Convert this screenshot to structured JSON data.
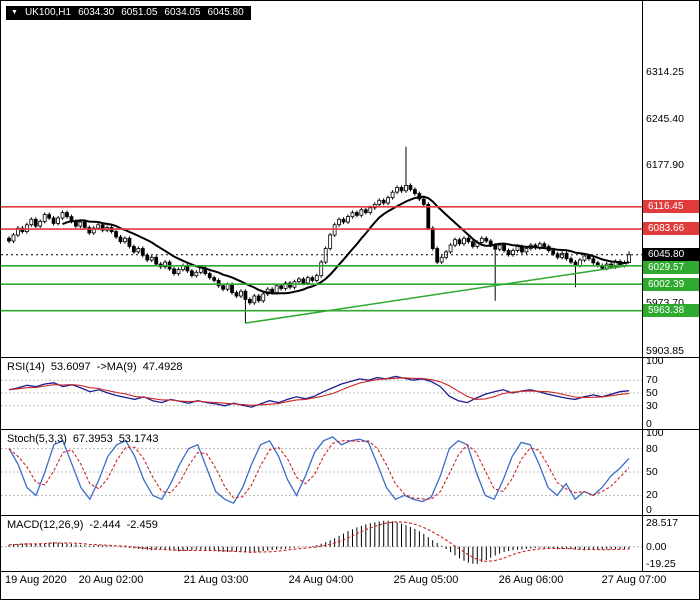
{
  "title_bar": {
    "symbol_period": "UK100,H1",
    "open": "6034.30",
    "high": "6051.05",
    "low": "6034.05",
    "close": "6045.80"
  },
  "colors": {
    "background": "#ffffff",
    "candle_outline": "#000000",
    "red_level": "#e03c3c",
    "green_level": "#2faa2f",
    "rsi_main": "#1c1c8f",
    "signal_red": "#cc2626",
    "stoch_main": "#3a6cc8",
    "badge_black": "#000000"
  },
  "chart_data": {
    "type": "candlestick",
    "symbol": "UK100",
    "period": "H1",
    "x_axis_labels": [
      "19 Aug 2020",
      "20 Aug 02:00",
      "21 Aug 03:00",
      "24 Aug 04:00",
      "25 Aug 05:00",
      "26 Aug 06:00",
      "27 Aug 07:00"
    ],
    "y_axis_labels": [
      "6314.25",
      "6245.40",
      "6177.90",
      "5973.70",
      "5903.85"
    ],
    "price_range": {
      "min": 5901,
      "max": 6408
    },
    "levels": [
      {
        "price": 6116.45,
        "label": "6116.45",
        "color": "#e03c3c",
        "type": "resistance"
      },
      {
        "price": 6083.66,
        "label": "6083.66",
        "color": "#e03c3c",
        "type": "resistance"
      },
      {
        "price": 6029.57,
        "label": "6029.57",
        "color": "#2faa2f",
        "type": "support"
      },
      {
        "price": 6002.39,
        "label": "6002.39",
        "color": "#2faa2f",
        "type": "support"
      },
      {
        "price": 5963.38,
        "label": "5963.38",
        "color": "#2faa2f",
        "type": "support"
      }
    ],
    "current_price": {
      "price": 6045.8,
      "label": "6045.80"
    },
    "trendline": {
      "from_index": 53,
      "from_price": 5945,
      "to_index": 139,
      "to_price": 6030,
      "color": "#2faa2f"
    },
    "ma_period": 13,
    "candles": {
      "first_open": 6070,
      "wick": 3,
      "closes": [
        6066,
        6075,
        6085,
        6080,
        6090,
        6098,
        6088,
        6095,
        6105,
        6100,
        6092,
        6100,
        6108,
        6102,
        6095,
        6088,
        6094,
        6086,
        6078,
        6085,
        6090,
        6082,
        6086,
        6080,
        6072,
        6065,
        6070,
        6058,
        6050,
        6055,
        6045,
        6038,
        6042,
        6032,
        6028,
        6035,
        6025,
        6018,
        6024,
        6030,
        6022,
        6015,
        6020,
        6026,
        6018,
        6012,
        6008,
        6000,
        5995,
        6002,
        5990,
        5985,
        5992,
        5980,
        5975,
        5985,
        5978,
        5988,
        5995,
        5990,
        6000,
        5996,
        6004,
        5998,
        6006,
        6010,
        6004,
        6012,
        6008,
        6015,
        6035,
        6055,
        6075,
        6090,
        6098,
        6094,
        6102,
        6108,
        6104,
        6112,
        6108,
        6115,
        6120,
        6126,
        6122,
        6130,
        6138,
        6145,
        6140,
        6148,
        6142,
        6136,
        6128,
        6120,
        6085,
        6055,
        6035,
        6042,
        6050,
        6060,
        6068,
        6062,
        6070,
        6065,
        6058,
        6064,
        6070,
        6066,
        6060,
        6054,
        6060,
        6052,
        6046,
        6052,
        6058,
        6050,
        6055,
        6060,
        6056,
        6062,
        6058,
        6052,
        6047,
        6042,
        6048,
        6040,
        6035,
        6030,
        6038,
        6044,
        6040,
        6034,
        6030,
        6026,
        6032,
        6028,
        6036,
        6030,
        6034.3,
        6045.8
      ],
      "overrides": {
        "53": {
          "low": 5945
        },
        "89": {
          "high": 6205
        },
        "109": {
          "low": 5978
        },
        "127": {
          "low": 5998
        },
        "139": {
          "high": 6051.05,
          "low": 6034.05
        }
      }
    },
    "indicators": {
      "rsi": {
        "name": "RSI(14)",
        "value": "53.6097",
        "ma_name": "->MA(9)",
        "ma_value": "47.4928",
        "range": [
          0,
          100
        ],
        "level_lines": [
          30,
          50,
          70
        ],
        "axis_labels": [
          "100",
          "70",
          "50",
          "30",
          "0"
        ],
        "values": [
          55,
          58,
          62,
          60,
          64,
          66,
          60,
          63,
          58,
          52,
          55,
          50,
          46,
          43,
          40,
          44,
          38,
          35,
          40,
          37,
          34,
          38,
          35,
          33,
          30,
          34,
          31,
          28,
          33,
          38,
          35,
          40,
          44,
          41,
          45,
          52,
          58,
          64,
          68,
          72,
          70,
          74,
          72,
          76,
          73,
          70,
          72,
          68,
          60,
          45,
          38,
          35,
          42,
          48,
          52,
          55,
          50,
          53,
          55,
          52,
          48,
          45,
          42,
          40,
          44,
          47,
          44,
          48,
          52,
          53.6
        ]
      },
      "stoch": {
        "name": "Stoch(5,3,3)",
        "value": "67.3953",
        "signal_value": "53.1743",
        "range": [
          0,
          100
        ],
        "level_lines": [
          20,
          50,
          80
        ],
        "axis_labels": [
          "100",
          "80",
          "50",
          "20",
          "0"
        ],
        "values": [
          80,
          60,
          30,
          20,
          50,
          85,
          90,
          60,
          30,
          15,
          40,
          70,
          85,
          90,
          70,
          40,
          20,
          15,
          35,
          60,
          80,
          85,
          55,
          25,
          15,
          10,
          30,
          60,
          85,
          90,
          70,
          40,
          20,
          45,
          75,
          90,
          95,
          85,
          90,
          92,
          88,
          60,
          30,
          15,
          20,
          15,
          12,
          18,
          45,
          80,
          90,
          85,
          50,
          20,
          15,
          40,
          70,
          88,
          85,
          60,
          30,
          20,
          35,
          15,
          25,
          20,
          30,
          45,
          55,
          67.4
        ]
      },
      "macd": {
        "name": "MACD(12,26,9)",
        "value": "-2.444",
        "signal_value": "-2.459",
        "range": [
          -22,
          30
        ],
        "axis_labels": [
          "28.517",
          "0.00",
          "-19.25"
        ],
        "values": [
          2,
          3,
          4,
          3,
          4,
          5,
          4,
          3,
          2,
          1,
          2,
          1,
          0,
          -1,
          -2,
          -3,
          -4,
          -3,
          -4,
          -5,
          -4,
          -3,
          -4,
          -5,
          -6,
          -5,
          -6,
          -7,
          -5,
          -4,
          -3,
          -2,
          -1,
          0,
          1,
          4,
          8,
          13,
          18,
          22,
          25,
          27,
          28.5,
          27,
          24,
          20,
          15,
          8,
          2,
          -5,
          -12,
          -17,
          -19.2,
          -15,
          -10,
          -6,
          -4,
          -3,
          -2,
          -1,
          -2,
          -3,
          -2,
          -3,
          -4,
          -3,
          -3,
          -2.8,
          -2.5,
          -2.444
        ]
      }
    }
  }
}
